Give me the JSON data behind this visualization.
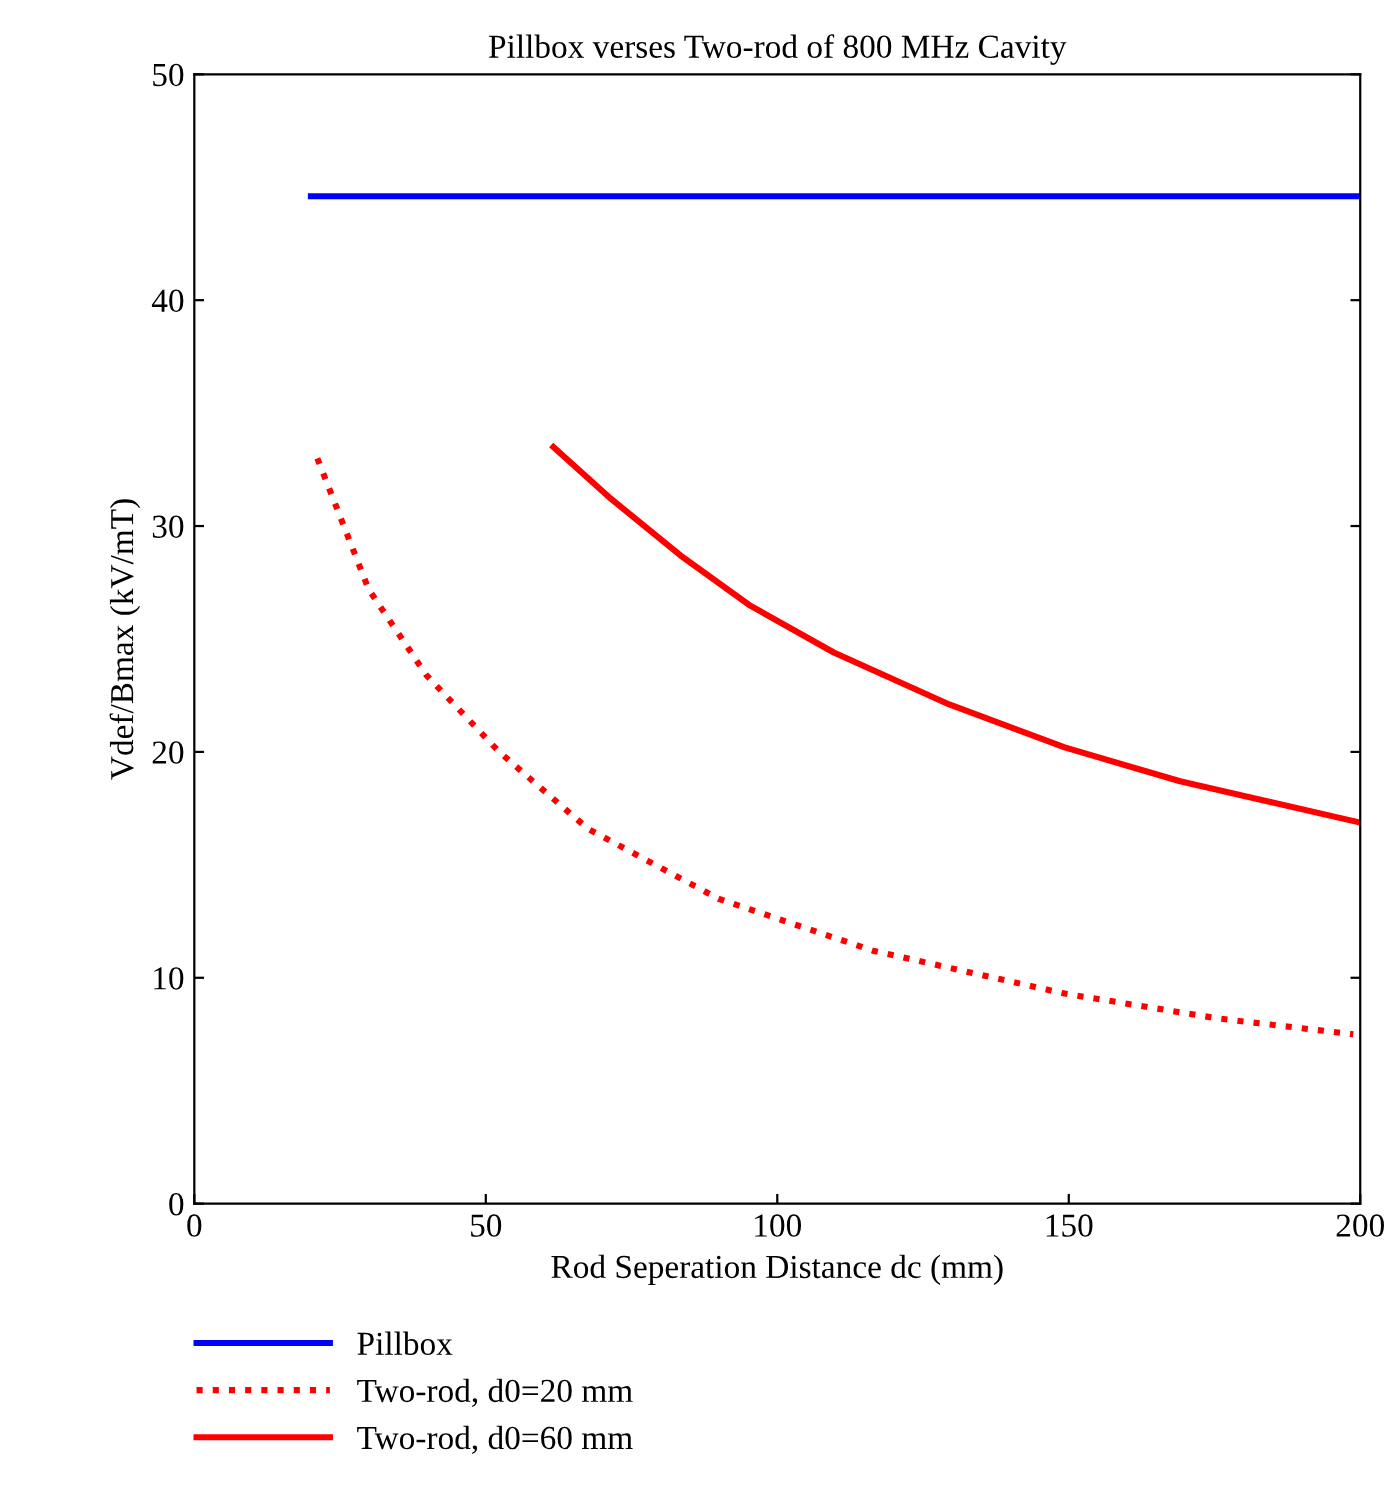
{
  "chart_data": {
    "type": "line",
    "title": "Pillbox verses Two-rod of 800 MHz Cavity",
    "xlabel": "Rod Seperation Distance dc (mm)",
    "ylabel": "Vdef/Bmax (kV/mT)",
    "xlim": [
      0,
      200
    ],
    "ylim": [
      0,
      50
    ],
    "xticks": [
      0,
      50,
      100,
      150,
      200
    ],
    "yticks": [
      0,
      10,
      20,
      30,
      40,
      50
    ],
    "grid": false,
    "legend": "bottom",
    "series": [
      {
        "name": "Pillbox",
        "color": "#0000ff",
        "line_style": "solid",
        "x": [
          20,
          200
        ],
        "values": [
          44.6,
          44.6
        ]
      },
      {
        "name": "Two-rod, d0=20 mm",
        "color": "#ff0000",
        "line_style": "dotted",
        "x": [
          21.1,
          29.9,
          39.8,
          52.3,
          67.5,
          89.9,
          116.4,
          149.3,
          175.6,
          198.8
        ],
        "values": [
          33.0,
          27.2,
          23.4,
          20.0,
          16.6,
          13.5,
          11.2,
          9.3,
          8.2,
          7.5
        ]
      },
      {
        "name": "Two-rod, d0=60 mm",
        "color": "#ff0000",
        "line_style": "solid",
        "x": [
          61.6,
          71.5,
          83.4,
          95.2,
          109.7,
          129.5,
          149.3,
          169.1,
          199.5
        ],
        "values": [
          33.5,
          31.2,
          28.7,
          26.5,
          24.4,
          22.1,
          20.2,
          18.7,
          16.9
        ]
      }
    ]
  }
}
